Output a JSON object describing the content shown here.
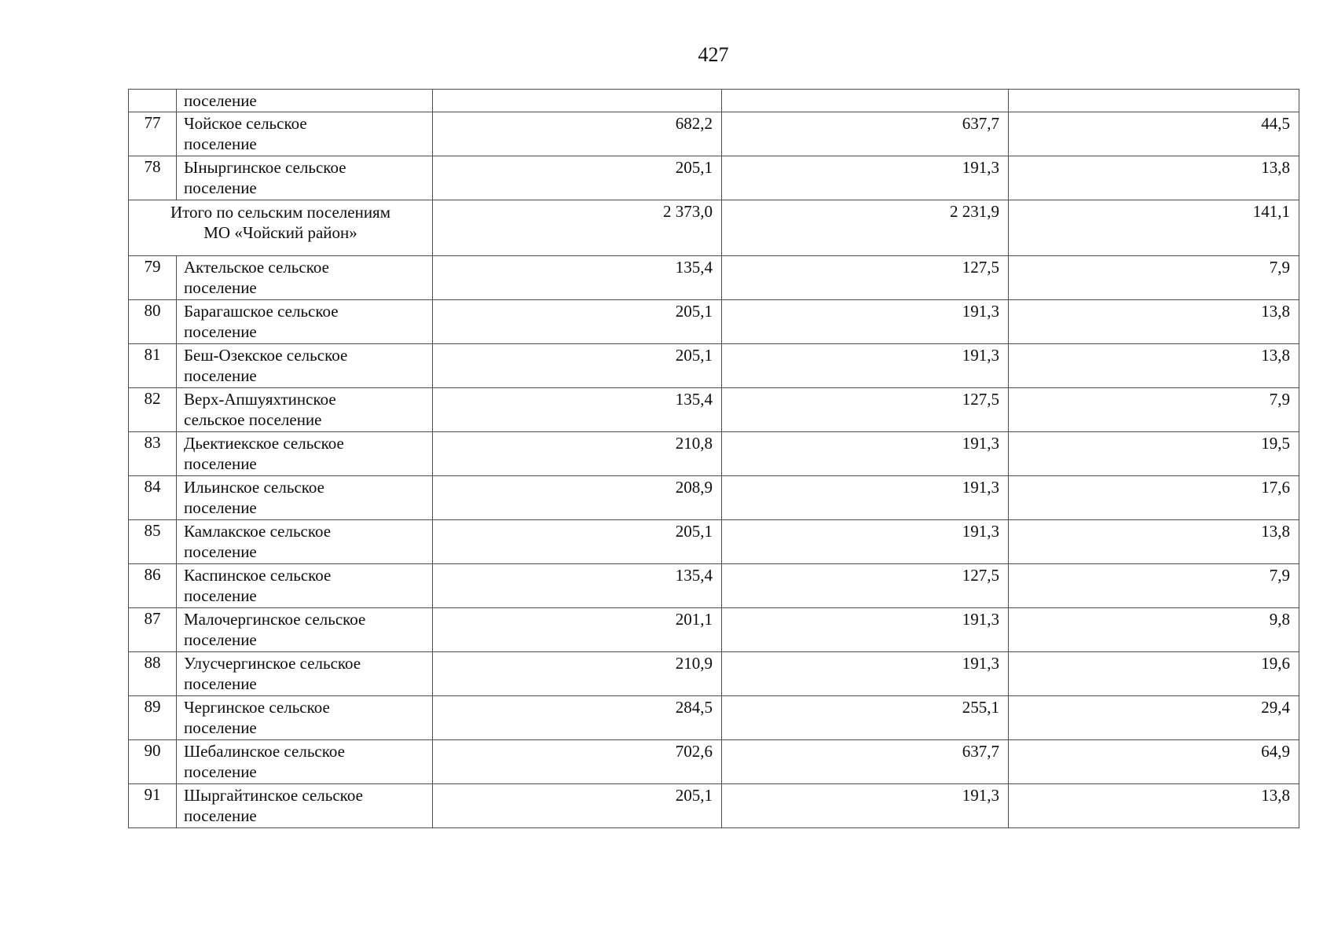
{
  "page": {
    "number": "427"
  },
  "table": {
    "rows": [
      {
        "type": "continuation",
        "num": "",
        "name": "поселение",
        "values": [
          "",
          "",
          ""
        ]
      },
      {
        "type": "data",
        "num": "77",
        "name": "Чойское сельское\nпоселение",
        "values": [
          "682,2",
          "637,7",
          "44,5"
        ]
      },
      {
        "type": "data",
        "num": "78",
        "name": "Ыныргинское сельское\nпоселение",
        "values": [
          "205,1",
          "191,3",
          "13,8"
        ]
      },
      {
        "type": "total",
        "num": "",
        "name": "Итого по сельским поселениям\nМО «Чойский район»",
        "values": [
          "2 373,0",
          "2 231,9",
          "141,1"
        ]
      },
      {
        "type": "data",
        "num": "79",
        "name": "Актельское сельское\nпоселение",
        "values": [
          "135,4",
          "127,5",
          "7,9"
        ]
      },
      {
        "type": "data",
        "num": "80",
        "name": "Барагашское сельское\nпоселение",
        "values": [
          "205,1",
          "191,3",
          "13,8"
        ]
      },
      {
        "type": "data",
        "num": "81",
        "name": "Беш-Озекское сельское\nпоселение",
        "values": [
          "205,1",
          "191,3",
          "13,8"
        ]
      },
      {
        "type": "data",
        "num": "82",
        "name": "Верх-Апшуяхтинское\nсельское поселение",
        "values": [
          "135,4",
          "127,5",
          "7,9"
        ]
      },
      {
        "type": "data",
        "num": "83",
        "name": "Дьектиекское сельское\nпоселение",
        "values": [
          "210,8",
          "191,3",
          "19,5"
        ]
      },
      {
        "type": "data",
        "num": "84",
        "name": "Ильинское сельское\nпоселение",
        "values": [
          "208,9",
          "191,3",
          "17,6"
        ]
      },
      {
        "type": "data",
        "num": "85",
        "name": "Камлакское сельское\nпоселение",
        "values": [
          "205,1",
          "191,3",
          "13,8"
        ]
      },
      {
        "type": "data",
        "num": "86",
        "name": "Каспинское сельское\nпоселение",
        "values": [
          "135,4",
          "127,5",
          "7,9"
        ]
      },
      {
        "type": "data",
        "num": "87",
        "name": "Малочергинское сельское\nпоселение",
        "values": [
          "201,1",
          "191,3",
          "9,8"
        ]
      },
      {
        "type": "data",
        "num": "88",
        "name": "Улусчергинское сельское\nпоселение",
        "values": [
          "210,9",
          "191,3",
          "19,6"
        ]
      },
      {
        "type": "data",
        "num": "89",
        "name": "Чергинское сельское\nпоселение",
        "values": [
          "284,5",
          "255,1",
          "29,4"
        ]
      },
      {
        "type": "data",
        "num": "90",
        "name": "Шебалинское сельское\nпоселение",
        "values": [
          "702,6",
          "637,7",
          "64,9"
        ]
      },
      {
        "type": "data",
        "num": "91",
        "name": "Шыргайтинское сельское\nпоселение",
        "values": [
          "205,1",
          "191,3",
          "13,8"
        ]
      }
    ]
  }
}
